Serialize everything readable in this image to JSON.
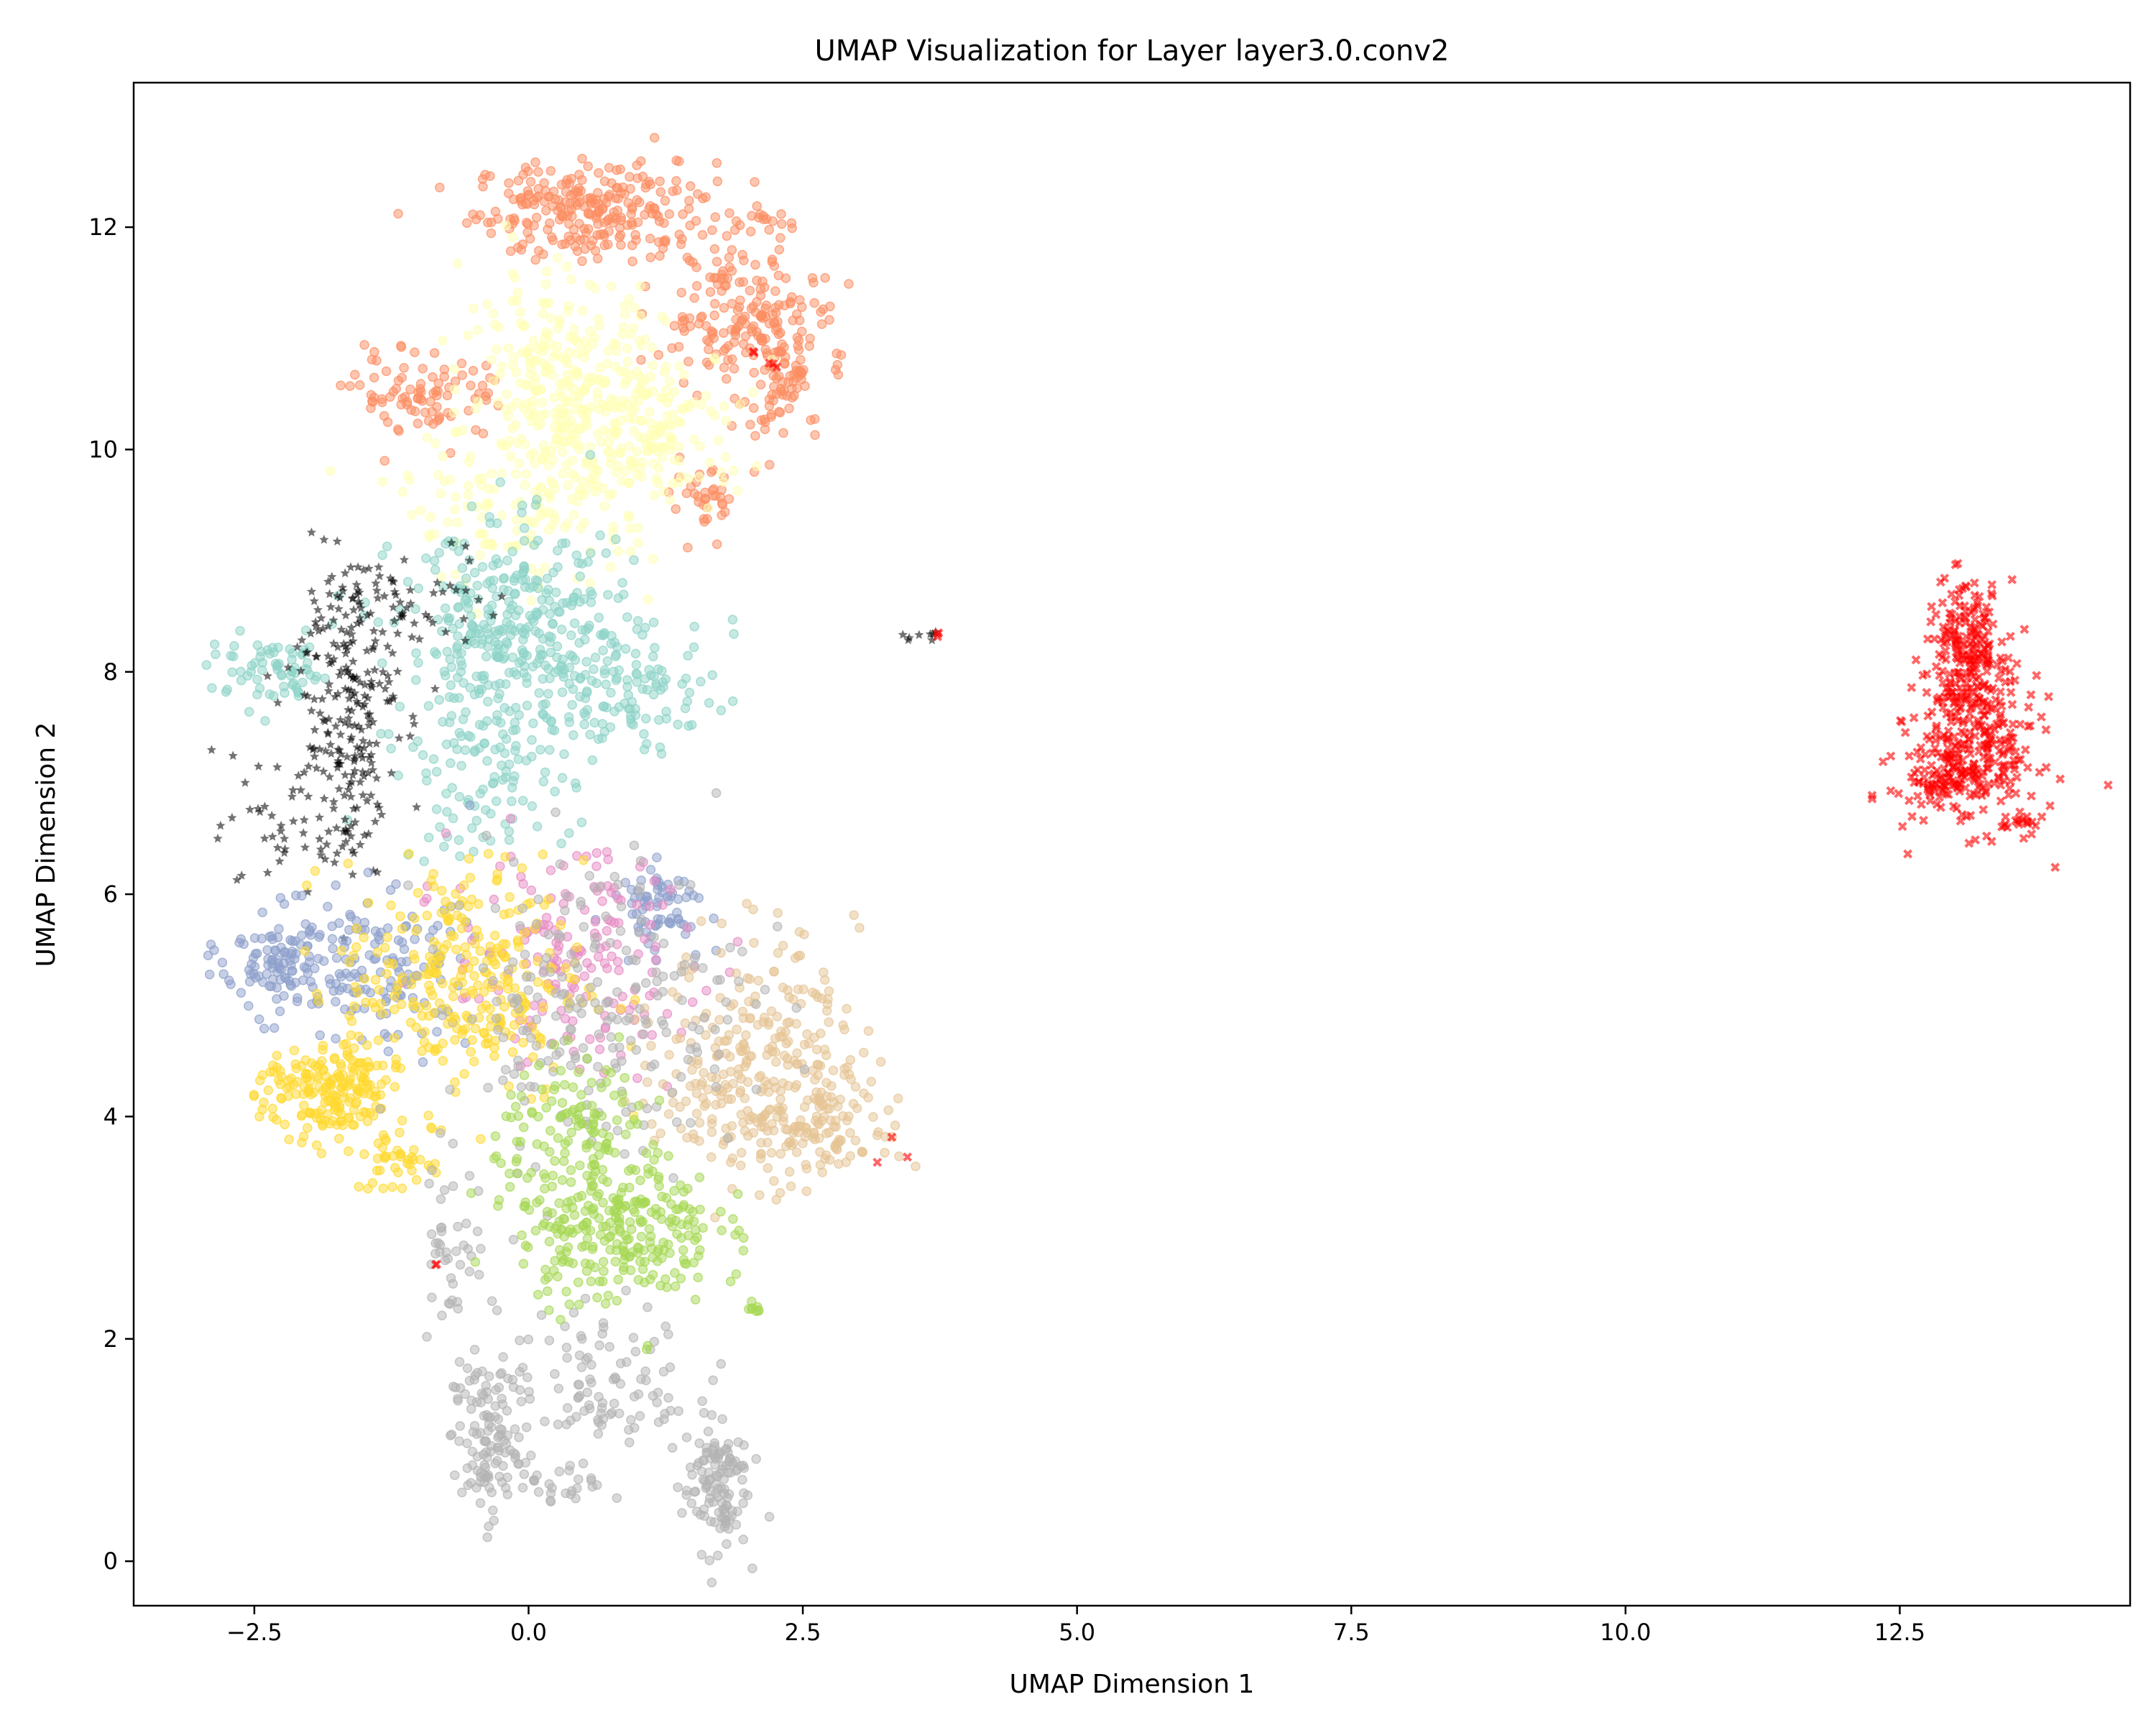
{
  "chart_data": {
    "type": "scatter",
    "title": "UMAP Visualization for Layer layer3.0.conv2",
    "xlabel": "UMAP Dimension 1",
    "ylabel": "UMAP Dimension 2",
    "xlim": [
      -3.6,
      14.6
    ],
    "ylim": [
      -0.4,
      13.3
    ],
    "xticks": [
      -2.5,
      0.0,
      2.5,
      5.0,
      7.5,
      10.0,
      12.5
    ],
    "xtick_labels": [
      "−2.5",
      "0.0",
      "2.5",
      "5.0",
      "7.5",
      "10.0",
      "12.5"
    ],
    "yticks": [
      0,
      2,
      4,
      6,
      8,
      10,
      12
    ],
    "ytick_labels": [
      "0",
      "2",
      "4",
      "6",
      "8",
      "10",
      "12"
    ],
    "grid": false,
    "legend": "none",
    "series": [
      {
        "color": "#fc8d62",
        "marker": "circle",
        "clusters": [
          {
            "cx": 0.6,
            "cy": 12.15,
            "sx": 0.55,
            "sy": 0.22,
            "n": 260
          },
          {
            "cx": 1.9,
            "cy": 11.2,
            "sx": 0.35,
            "sy": 0.3,
            "n": 160
          },
          {
            "cx": 2.3,
            "cy": 10.65,
            "sx": 0.2,
            "sy": 0.35,
            "n": 90
          },
          {
            "cx": -0.9,
            "cy": 10.5,
            "sx": 0.35,
            "sy": 0.2,
            "n": 90
          },
          {
            "cx": 1.6,
            "cy": 9.5,
            "sx": 0.15,
            "sy": 0.15,
            "n": 35
          },
          {
            "cx": 2.15,
            "cy": 12.05,
            "sx": 0.12,
            "sy": 0.05,
            "n": 15
          }
        ]
      },
      {
        "color": "#ffffb3",
        "marker": "circle",
        "clusters": [
          {
            "cx": 0.3,
            "cy": 10.6,
            "sx": 0.45,
            "sy": 0.5,
            "n": 260
          },
          {
            "cx": 1.1,
            "cy": 10.2,
            "sx": 0.45,
            "sy": 0.35,
            "n": 160
          },
          {
            "cx": 0.0,
            "cy": 9.5,
            "sx": 0.6,
            "sy": 0.35,
            "n": 140
          }
        ]
      },
      {
        "color": "#8dd3c7",
        "marker": "circle",
        "clusters": [
          {
            "cx": -0.1,
            "cy": 8.3,
            "sx": 0.55,
            "sy": 0.5,
            "n": 380
          },
          {
            "cx": 1.0,
            "cy": 7.8,
            "sx": 0.35,
            "sy": 0.25,
            "n": 90
          },
          {
            "cx": -2.3,
            "cy": 8.0,
            "sx": 0.3,
            "sy": 0.15,
            "n": 70
          },
          {
            "cx": -0.4,
            "cy": 7.0,
            "sx": 0.4,
            "sy": 0.35,
            "n": 90
          }
        ]
      },
      {
        "color": "#000000",
        "marker": "star",
        "clusters": [
          {
            "cx": -1.7,
            "cy": 7.6,
            "sx": 0.25,
            "sy": 0.7,
            "n": 230
          },
          {
            "cx": -1.1,
            "cy": 8.6,
            "sx": 0.4,
            "sy": 0.3,
            "n": 70
          },
          {
            "cx": -2.3,
            "cy": 6.5,
            "sx": 0.25,
            "sy": 0.25,
            "n": 30
          },
          {
            "cx": 3.55,
            "cy": 8.32,
            "sx": 0.08,
            "sy": 0.03,
            "n": 8
          }
        ]
      },
      {
        "color": "#8da0cb",
        "marker": "circle",
        "clusters": [
          {
            "cx": -2.2,
            "cy": 5.4,
            "sx": 0.3,
            "sy": 0.25,
            "n": 130
          },
          {
            "cx": -1.3,
            "cy": 5.3,
            "sx": 0.4,
            "sy": 0.35,
            "n": 110
          },
          {
            "cx": 1.2,
            "cy": 5.9,
            "sx": 0.22,
            "sy": 0.18,
            "n": 70
          }
        ]
      },
      {
        "color": "#e78ac3",
        "marker": "circle",
        "clusters": [
          {
            "cx": 0.4,
            "cy": 5.4,
            "sx": 0.55,
            "sy": 0.5,
            "n": 170
          }
        ]
      },
      {
        "color": "#e5c494",
        "marker": "circle",
        "clusters": [
          {
            "cx": 2.1,
            "cy": 4.5,
            "sx": 0.45,
            "sy": 0.55,
            "n": 300
          },
          {
            "cx": 2.7,
            "cy": 3.9,
            "sx": 0.35,
            "sy": 0.2,
            "n": 90
          }
        ]
      },
      {
        "color": "#ffd92f",
        "marker": "circle",
        "clusters": [
          {
            "cx": -1.8,
            "cy": 4.2,
            "sx": 0.3,
            "sy": 0.22,
            "n": 190
          },
          {
            "cx": -0.6,
            "cy": 5.2,
            "sx": 0.55,
            "sy": 0.55,
            "n": 300
          },
          {
            "cx": -1.2,
            "cy": 3.6,
            "sx": 0.2,
            "sy": 0.15,
            "n": 40
          }
        ]
      },
      {
        "color": "#b3b3b3",
        "marker": "circle",
        "clusters": [
          {
            "cx": 0.6,
            "cy": 5.0,
            "sx": 0.7,
            "sy": 0.7,
            "n": 220
          },
          {
            "cx": -0.4,
            "cy": 1.1,
            "sx": 0.15,
            "sy": 0.35,
            "n": 110
          },
          {
            "cx": 1.7,
            "cy": 0.7,
            "sx": 0.15,
            "sy": 0.3,
            "n": 120
          },
          {
            "cx": 0.6,
            "cy": 1.6,
            "sx": 0.45,
            "sy": 0.35,
            "n": 110
          },
          {
            "cx": 0.3,
            "cy": 0.7,
            "sx": 0.3,
            "sy": 0.08,
            "n": 30
          },
          {
            "cx": -0.7,
            "cy": 2.8,
            "sx": 0.15,
            "sy": 0.4,
            "n": 40
          }
        ]
      },
      {
        "color": "#a6d854",
        "marker": "circle",
        "clusters": [
          {
            "cx": 0.8,
            "cy": 3.0,
            "sx": 0.45,
            "sy": 0.35,
            "n": 280
          },
          {
            "cx": 0.5,
            "cy": 3.9,
            "sx": 0.4,
            "sy": 0.3,
            "n": 110
          },
          {
            "cx": 2.05,
            "cy": 2.27,
            "sx": 0.04,
            "sy": 0.02,
            "n": 8
          }
        ]
      },
      {
        "color": "#ff0000",
        "marker": "x",
        "clusters": [
          {
            "cx": 13.1,
            "cy": 8.2,
            "sx": 0.18,
            "sy": 0.3,
            "n": 200
          },
          {
            "cx": 13.2,
            "cy": 7.3,
            "sx": 0.28,
            "sy": 0.35,
            "n": 260
          },
          {
            "cx": 12.8,
            "cy": 7.0,
            "sx": 0.2,
            "sy": 0.12,
            "n": 60
          },
          {
            "cx": 13.6,
            "cy": 6.65,
            "sx": 0.1,
            "sy": 0.06,
            "n": 20
          },
          {
            "cx": 3.75,
            "cy": 8.33,
            "sx": 0.02,
            "sy": 0.02,
            "n": 3
          },
          {
            "cx": 3.3,
            "cy": 3.65,
            "sx": 0.06,
            "sy": 0.06,
            "n": 3
          },
          {
            "cx": 2.2,
            "cy": 11.0,
            "sx": 0.08,
            "sy": 0.3,
            "n": 5
          },
          {
            "cx": -0.85,
            "cy": 2.65,
            "sx": 0.02,
            "sy": 0.02,
            "n": 2
          }
        ]
      }
    ]
  }
}
